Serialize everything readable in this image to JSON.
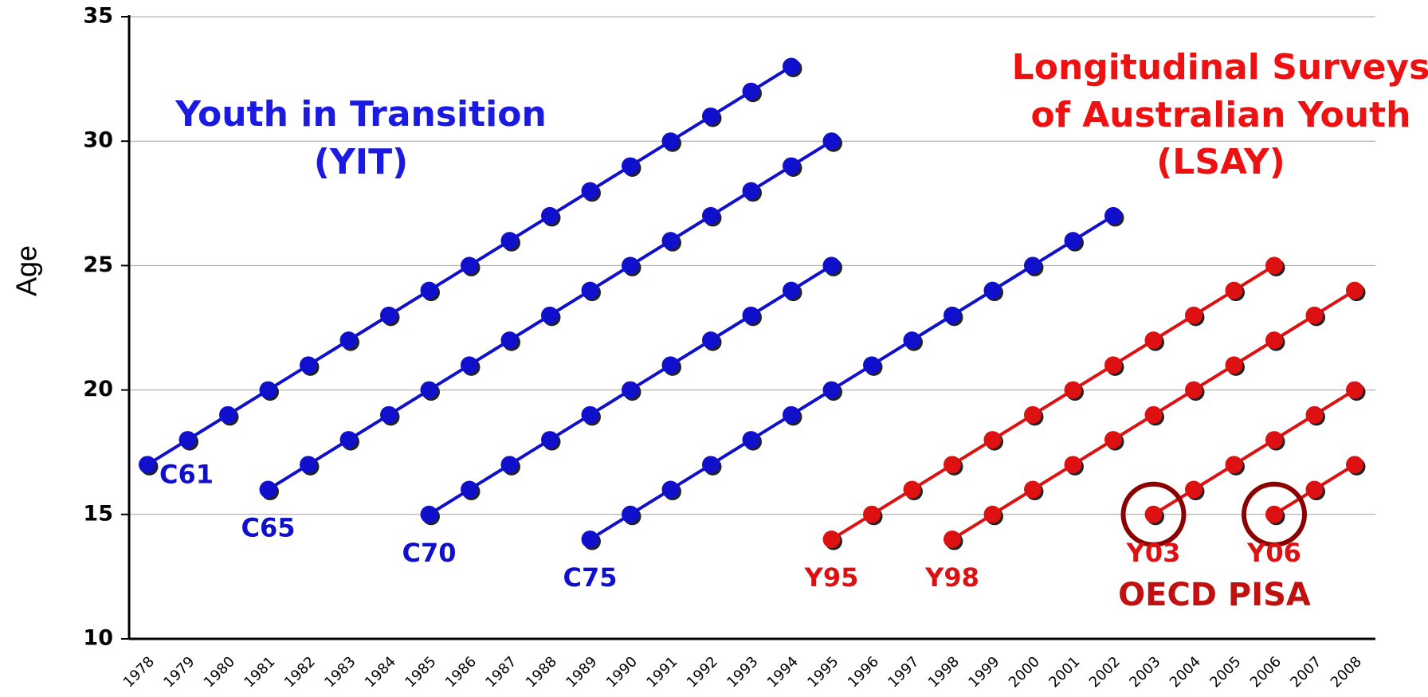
{
  "chart_data": {
    "type": "line",
    "ylabel": "Age",
    "ylim": [
      10,
      35
    ],
    "yticks": [
      10,
      15,
      20,
      25,
      30,
      35
    ],
    "grid": true,
    "categories": [
      "1978",
      "1979",
      "1980",
      "1981",
      "1982",
      "1983",
      "1984",
      "1985",
      "1986",
      "1987",
      "1988",
      "1989",
      "1990",
      "1991",
      "1992",
      "1993",
      "1994",
      "1995",
      "1996",
      "1997",
      "1998",
      "1999",
      "2000",
      "2001",
      "2002",
      "2003",
      "2004",
      "2005",
      "2006",
      "2007",
      "2008"
    ],
    "series": [
      {
        "name": "C61",
        "color": "#1010cc",
        "values": [
          17,
          18,
          19,
          20,
          21,
          22,
          23,
          24,
          25,
          26,
          27,
          28,
          29,
          30,
          31,
          32,
          33,
          null,
          null,
          null,
          null,
          null,
          null,
          null,
          null,
          null,
          null,
          null,
          null,
          null,
          null
        ]
      },
      {
        "name": "C65",
        "color": "#1010cc",
        "values": [
          null,
          null,
          null,
          16,
          17,
          18,
          19,
          20,
          21,
          22,
          23,
          24,
          25,
          26,
          27,
          28,
          29,
          30,
          null,
          null,
          null,
          null,
          null,
          null,
          null,
          null,
          null,
          null,
          null,
          null,
          null
        ]
      },
      {
        "name": "C70",
        "color": "#1010cc",
        "values": [
          null,
          null,
          null,
          null,
          null,
          null,
          null,
          15,
          16,
          17,
          18,
          19,
          20,
          21,
          22,
          23,
          24,
          25,
          null,
          null,
          null,
          null,
          null,
          null,
          null,
          null,
          null,
          null,
          null,
          null,
          null
        ]
      },
      {
        "name": "C75",
        "color": "#1010cc",
        "values": [
          null,
          null,
          null,
          null,
          null,
          null,
          null,
          null,
          null,
          null,
          null,
          14,
          15,
          16,
          17,
          18,
          19,
          20,
          21,
          22,
          23,
          24,
          25,
          26,
          27,
          null,
          null,
          null,
          null,
          null,
          null
        ]
      },
      {
        "name": "Y95",
        "color": "#dd1111",
        "values": [
          null,
          null,
          null,
          null,
          null,
          null,
          null,
          null,
          null,
          null,
          null,
          null,
          null,
          null,
          null,
          null,
          null,
          14,
          15,
          16,
          17,
          18,
          19,
          20,
          21,
          22,
          23,
          24,
          25,
          null,
          null
        ]
      },
      {
        "name": "Y98",
        "color": "#dd1111",
        "values": [
          null,
          null,
          null,
          null,
          null,
          null,
          null,
          null,
          null,
          null,
          null,
          null,
          null,
          null,
          null,
          null,
          null,
          null,
          null,
          null,
          14,
          15,
          16,
          17,
          18,
          19,
          20,
          21,
          22,
          23,
          24
        ]
      },
      {
        "name": "Y03",
        "color": "#dd1111",
        "values": [
          null,
          null,
          null,
          null,
          null,
          null,
          null,
          null,
          null,
          null,
          null,
          null,
          null,
          null,
          null,
          null,
          null,
          null,
          null,
          null,
          null,
          null,
          null,
          null,
          null,
          15,
          16,
          17,
          18,
          19,
          20
        ]
      },
      {
        "name": "Y06",
        "color": "#dd1111",
        "values": [
          null,
          null,
          null,
          null,
          null,
          null,
          null,
          null,
          null,
          null,
          null,
          null,
          null,
          null,
          null,
          null,
          null,
          null,
          null,
          null,
          null,
          null,
          null,
          null,
          null,
          null,
          null,
          null,
          15,
          16,
          17
        ]
      }
    ],
    "annotations": [
      {
        "text": "Youth in Transition",
        "color": "#1a1ae0"
      },
      {
        "text": "(YIT)",
        "color": "#1a1ae0"
      },
      {
        "text": "Longitudinal Surveys",
        "color": "#ee1111"
      },
      {
        "text": "of Australian Youth",
        "color": "#ee1111"
      },
      {
        "text": "(LSAY)",
        "color": "#ee1111"
      },
      {
        "text": "OECD PISA",
        "color": "#c01010"
      }
    ]
  }
}
